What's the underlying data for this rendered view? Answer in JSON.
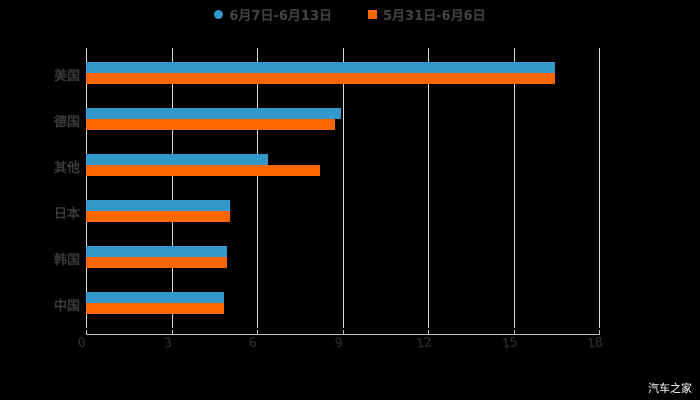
{
  "legend": [
    {
      "label": "6月7日-6月13日",
      "color": "#3399cc",
      "shape": "circle"
    },
    {
      "label": "5月31日-6月6日",
      "color": "#ff6600",
      "shape": "square"
    }
  ],
  "watermark": "汽车之家",
  "chart_data": {
    "type": "bar",
    "orientation": "horizontal",
    "title": "",
    "xlabel": "",
    "ylabel": "",
    "categories": [
      "美国",
      "德国",
      "其他",
      "日本",
      "韩国",
      "中国"
    ],
    "series": [
      {
        "name": "6月7日-6月13日",
        "color": "#3399cc",
        "values": [
          16.45,
          8.95,
          6.39,
          5.05,
          4.95,
          4.84
        ]
      },
      {
        "name": "5月31日-6月6日",
        "color": "#ff6600",
        "values": [
          16.45,
          8.74,
          8.21,
          5.05,
          4.95,
          4.84
        ]
      }
    ],
    "xlim": [
      0,
      18
    ],
    "xticks": [
      "0",
      "3",
      "6",
      "9",
      "12",
      "15",
      "18"
    ],
    "grid": true,
    "legend_position": "top"
  }
}
